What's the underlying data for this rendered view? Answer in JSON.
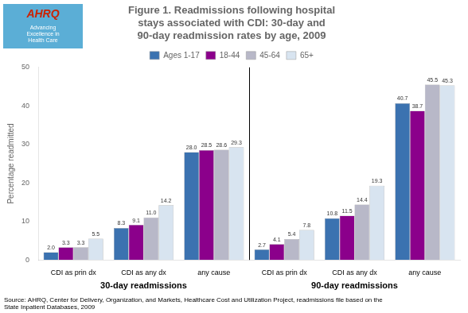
{
  "chart_data": {
    "type": "bar",
    "title": "Figure 1. Readmissions following hospital\nstays associated with CDI: 30-day and\n90-day readmission rates by age, 2009",
    "y_label": "Percentage readmitted",
    "categories": [
      "CDI as prin dx",
      "CDI as any dx",
      "any cause",
      "CDI as prin dx",
      "CDI as any dx",
      "any cause"
    ],
    "series": [
      {
        "name": "Ages 1-17",
        "color": "#3B72B0",
        "values": [
          2.0,
          8.3,
          28.0,
          2.7,
          10.8,
          40.7
        ],
        "value_labels": [
          "2.0",
          "8.3",
          "28.0",
          "2.7",
          "10.8",
          "40.7"
        ]
      },
      {
        "name": "18-44",
        "color": "#8B008B",
        "values": [
          3.3,
          9.1,
          28.5,
          4.1,
          11.5,
          38.7
        ],
        "value_labels": [
          "3.3",
          "9.1",
          "28.5",
          "4.1",
          "11.5",
          "38.7"
        ]
      },
      {
        "name": "45-64",
        "color": "#B8B8C8",
        "values": [
          3.3,
          11.0,
          28.6,
          5.4,
          14.4,
          45.5
        ],
        "value_labels": [
          "3.3",
          "11.0",
          "28.6",
          "5.4",
          "14.4",
          "45.5"
        ]
      },
      {
        "name": "65+",
        "color": "#D8E4F0",
        "values": [
          5.5,
          14.2,
          29.3,
          7.8,
          19.3,
          45.3
        ],
        "value_labels": [
          "5.5",
          "14.2",
          "29.3",
          "7.8",
          "19.3",
          "45.3"
        ]
      }
    ],
    "annotations": [
      {
        "text": "30-day readmissions"
      },
      {
        "text": "90-day readmissions"
      },
      {
        "text": "AHRQ"
      },
      {
        "text": "Advancing\nExcellence in\nHealth Care"
      },
      {
        "text": "Source: AHRQ, Center for Delivery, Organization, and Markets, Healthcare Cost and Utilization Project, readmissions file based on the\nState Inpatient Databases, 2009"
      }
    ],
    "ylim": [
      0,
      50
    ],
    "yticks": [
      0,
      10,
      20,
      30,
      40,
      50
    ],
    "grid": false,
    "legend": "top",
    "data_labels": true
  }
}
